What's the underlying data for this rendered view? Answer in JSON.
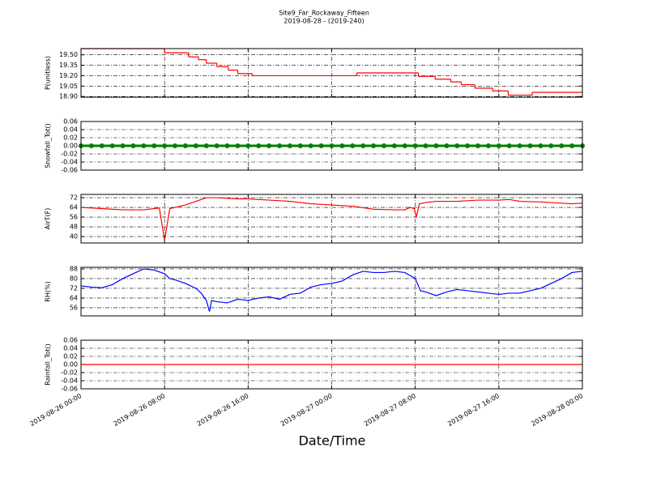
{
  "chart_data": [
    {
      "type": "line",
      "title": "Site9_Far_Rockaway_Fifteen",
      "subtitle": "2019-08-28 - (2019-240)",
      "ylabel": "P(unitless)",
      "color": "#ff0000",
      "drawstyle": "steps-post",
      "grid": true,
      "x": [
        "2019-08-26 00:00",
        "2019-08-26 08:00",
        "2019-08-26 10:18",
        "2019-08-26 11:15",
        "2019-08-26 12:00",
        "2019-08-26 13:00",
        "2019-08-26 14:06",
        "2019-08-26 15:00",
        "2019-08-26 16:24",
        "2019-08-27 02:24",
        "2019-08-27 08:18",
        "2019-08-27 09:54",
        "2019-08-27 11:24",
        "2019-08-27 12:24",
        "2019-08-27 13:42",
        "2019-08-27 15:24",
        "2019-08-27 16:54",
        "2019-08-27 19:12"
      ],
      "values": [
        19.59,
        19.53,
        19.47,
        19.43,
        19.38,
        19.33,
        19.28,
        19.23,
        19.2,
        19.24,
        19.19,
        19.15,
        19.11,
        19.07,
        19.02,
        18.98,
        18.92,
        18.96
      ],
      "ylim": [
        18.89,
        19.59
      ],
      "yticks": [
        {
          "value": 18.9,
          "label": "18.90"
        },
        19.05,
        {
          "value": 19.2,
          "label": "19.20"
        },
        19.35,
        {
          "value": 19.5,
          "label": "19.50"
        }
      ]
    },
    {
      "type": "line",
      "ylabel": "Snowfall_Tot()",
      "color": "#008000",
      "marker": "o",
      "grid": true,
      "x": [
        "2019-08-26 00:00",
        "2019-08-26 01:00",
        "2019-08-26 02:00",
        "2019-08-26 03:00",
        "2019-08-26 04:00",
        "2019-08-26 05:00",
        "2019-08-26 06:00",
        "2019-08-26 07:00",
        "2019-08-26 08:00",
        "2019-08-26 09:00",
        "2019-08-26 10:00",
        "2019-08-26 11:00",
        "2019-08-26 12:00",
        "2019-08-26 13:00",
        "2019-08-26 14:00",
        "2019-08-26 15:00",
        "2019-08-26 16:00",
        "2019-08-26 17:00",
        "2019-08-26 18:00",
        "2019-08-26 19:00",
        "2019-08-26 20:00",
        "2019-08-26 21:00",
        "2019-08-26 22:00",
        "2019-08-26 23:00",
        "2019-08-27 00:00",
        "2019-08-27 01:00",
        "2019-08-27 02:00",
        "2019-08-27 03:00",
        "2019-08-27 04:00",
        "2019-08-27 05:00",
        "2019-08-27 06:00",
        "2019-08-27 07:00",
        "2019-08-27 08:00",
        "2019-08-27 09:00",
        "2019-08-27 10:00",
        "2019-08-27 11:00",
        "2019-08-27 12:00",
        "2019-08-27 13:00",
        "2019-08-27 14:00",
        "2019-08-27 15:00",
        "2019-08-27 16:00",
        "2019-08-27 17:00",
        "2019-08-27 18:00",
        "2019-08-27 19:00",
        "2019-08-27 20:00",
        "2019-08-27 21:00",
        "2019-08-27 22:00",
        "2019-08-27 23:00",
        "2019-08-28 00:00"
      ],
      "values": [
        0,
        0,
        0,
        0,
        0,
        0,
        0,
        0,
        0,
        0,
        0,
        0,
        0,
        0,
        0,
        0,
        0,
        0,
        0,
        0,
        0,
        0,
        0,
        0,
        0,
        0,
        0,
        0,
        0,
        0,
        0,
        0,
        0,
        0,
        0,
        0,
        0,
        0,
        0,
        0,
        0,
        0,
        0,
        0,
        0,
        0,
        0,
        0,
        0
      ],
      "ylim": [
        -0.06,
        0.06
      ],
      "yticks": [
        -0.06,
        -0.04,
        -0.02,
        {
          "value": 0,
          "label": "0.00"
        },
        0.02,
        0.04,
        0.06
      ]
    },
    {
      "type": "line",
      "ylabel": "AirT(F)",
      "color": "#ff0000",
      "grid": true,
      "x": [
        "2019-08-26 00:00",
        "2019-08-26 02:00",
        "2019-08-26 04:00",
        "2019-08-26 06:00",
        "2019-08-26 07:30",
        "2019-08-26 08:00",
        "2019-08-26 08:30",
        "2019-08-26 09:00",
        "2019-08-26 10:00",
        "2019-08-26 11:00",
        "2019-08-26 12:00",
        "2019-08-26 13:00",
        "2019-08-26 14:00",
        "2019-08-26 15:00",
        "2019-08-26 16:00",
        "2019-08-26 17:00",
        "2019-08-26 18:00",
        "2019-08-26 20:00",
        "2019-08-26 22:00",
        "2019-08-27 00:00",
        "2019-08-27 02:00",
        "2019-08-27 04:00",
        "2019-08-27 06:00",
        "2019-08-27 07:00",
        "2019-08-27 07:30",
        "2019-08-27 07:54",
        "2019-08-27 08:06",
        "2019-08-27 08:24",
        "2019-08-27 09:00",
        "2019-08-27 10:00",
        "2019-08-27 12:00",
        "2019-08-27 14:00",
        "2019-08-27 16:00",
        "2019-08-27 17:00",
        "2019-08-27 18:00",
        "2019-08-27 20:00",
        "2019-08-27 22:00",
        "2019-08-27 23:00",
        "2019-08-28 00:00"
      ],
      "values": [
        64,
        63,
        62,
        62,
        63.5,
        37,
        63,
        64,
        66,
        69,
        72,
        72,
        71.5,
        71,
        71,
        70.5,
        70,
        69,
        67,
        66,
        65,
        62.5,
        62,
        62,
        64,
        63,
        56,
        67,
        68,
        69,
        69,
        70,
        70,
        70.5,
        69,
        68.5,
        67.5,
        67,
        67.5
      ],
      "ylim": [
        34.7,
        74.7
      ],
      "yticks": [
        40,
        48,
        56,
        64,
        72
      ]
    },
    {
      "type": "line",
      "ylabel": "RH(%)",
      "color": "#0000ff",
      "grid": true,
      "x": [
        "2019-08-26 00:00",
        "2019-08-26 01:00",
        "2019-08-26 02:00",
        "2019-08-26 03:00",
        "2019-08-26 04:00",
        "2019-08-26 05:00",
        "2019-08-26 06:00",
        "2019-08-26 07:00",
        "2019-08-26 08:00",
        "2019-08-26 08:30",
        "2019-08-26 09:00",
        "2019-08-26 10:00",
        "2019-08-26 11:00",
        "2019-08-26 11:30",
        "2019-08-26 12:00",
        "2019-08-26 12:18",
        "2019-08-26 12:30",
        "2019-08-26 13:00",
        "2019-08-26 14:00",
        "2019-08-26 15:00",
        "2019-08-26 16:00",
        "2019-08-26 17:00",
        "2019-08-26 18:00",
        "2019-08-26 19:00",
        "2019-08-26 20:00",
        "2019-08-26 21:00",
        "2019-08-26 22:00",
        "2019-08-26 23:00",
        "2019-08-27 00:00",
        "2019-08-27 01:00",
        "2019-08-27 02:00",
        "2019-08-27 03:00",
        "2019-08-27 04:00",
        "2019-08-27 05:00",
        "2019-08-27 06:00",
        "2019-08-27 07:00",
        "2019-08-27 08:00",
        "2019-08-27 08:30",
        "2019-08-27 09:00",
        "2019-08-27 10:00",
        "2019-08-27 11:00",
        "2019-08-27 12:00",
        "2019-08-27 13:00",
        "2019-08-27 14:00",
        "2019-08-27 15:00",
        "2019-08-27 16:00",
        "2019-08-27 17:00",
        "2019-08-27 18:00",
        "2019-08-27 19:00",
        "2019-08-27 20:00",
        "2019-08-27 21:00",
        "2019-08-27 22:00",
        "2019-08-27 23:00",
        "2019-08-28 00:00"
      ],
      "values": [
        74,
        73,
        72.5,
        75,
        80,
        84,
        88,
        87,
        84,
        80,
        79,
        76,
        72,
        68,
        62,
        53,
        62,
        61,
        60,
        63,
        62,
        64,
        65,
        63,
        67,
        68,
        73,
        75,
        76,
        78,
        83,
        86,
        85,
        85,
        86,
        85,
        80,
        70,
        69,
        66,
        69,
        71,
        70,
        69,
        68,
        67,
        68,
        68,
        70,
        72,
        76,
        80,
        85,
        86
      ],
      "ylim": [
        49.3,
        89.3
      ],
      "yticks": [
        56,
        64,
        72,
        80,
        88
      ]
    },
    {
      "type": "line",
      "ylabel": "Rainfall_Tot()",
      "xlabel": "Date/Time",
      "color": "#ff0000",
      "grid": true,
      "x": [
        "2019-08-26 00:00",
        "2019-08-26 01:00",
        "2019-08-26 02:00",
        "2019-08-26 03:00",
        "2019-08-26 04:00",
        "2019-08-26 05:00",
        "2019-08-26 06:00",
        "2019-08-26 07:00",
        "2019-08-26 08:00",
        "2019-08-26 09:00",
        "2019-08-26 10:00",
        "2019-08-26 11:00",
        "2019-08-26 12:00",
        "2019-08-26 13:00",
        "2019-08-26 14:00",
        "2019-08-26 15:00",
        "2019-08-26 16:00",
        "2019-08-26 17:00",
        "2019-08-26 18:00",
        "2019-08-26 19:00",
        "2019-08-26 20:00",
        "2019-08-26 21:00",
        "2019-08-26 22:00",
        "2019-08-26 23:00",
        "2019-08-27 00:00",
        "2019-08-27 01:00",
        "2019-08-27 02:00",
        "2019-08-27 03:00",
        "2019-08-27 04:00",
        "2019-08-27 05:00",
        "2019-08-27 06:00",
        "2019-08-27 07:00",
        "2019-08-27 08:00",
        "2019-08-27 09:00",
        "2019-08-27 10:00",
        "2019-08-27 11:00",
        "2019-08-27 12:00",
        "2019-08-27 13:00",
        "2019-08-27 14:00",
        "2019-08-27 15:00",
        "2019-08-27 16:00",
        "2019-08-27 17:00",
        "2019-08-27 18:00",
        "2019-08-27 19:00",
        "2019-08-27 20:00",
        "2019-08-27 21:00",
        "2019-08-27 22:00",
        "2019-08-27 23:00",
        "2019-08-28 00:00"
      ],
      "values": [
        0,
        0,
        0,
        0,
        0,
        0,
        0,
        0,
        0,
        0,
        0,
        0,
        0,
        0,
        0,
        0,
        0,
        0,
        0,
        0,
        0,
        0,
        0,
        0,
        0,
        0,
        0,
        0,
        0,
        0,
        0,
        0,
        0,
        0,
        0,
        0,
        0,
        0,
        0,
        0,
        0,
        0,
        0,
        0,
        0,
        0,
        0,
        0,
        0
      ],
      "ylim": [
        -0.06,
        0.06
      ],
      "yticks": [
        -0.06,
        -0.04,
        -0.02,
        {
          "value": 0,
          "label": "0.00"
        },
        0.02,
        0.04,
        0.06
      ],
      "xlim": [
        "2019-08-26 00:00",
        "2019-08-28 00:00"
      ],
      "xticks": [
        "2019-08-26 00:00",
        "2019-08-26 08:00",
        "2019-08-26 16:00",
        "2019-08-27 00:00",
        "2019-08-27 08:00",
        "2019-08-27 16:00",
        "2019-08-28 00:00"
      ]
    }
  ]
}
